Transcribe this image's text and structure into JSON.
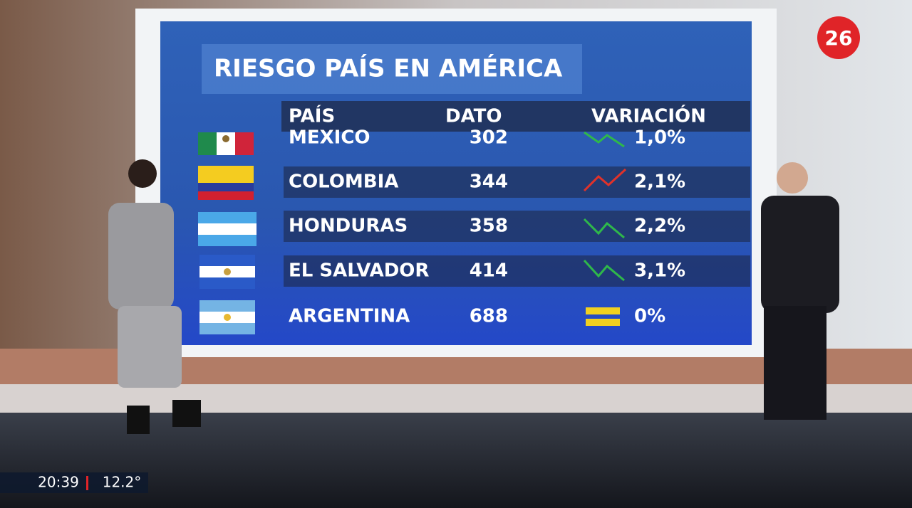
{
  "header": {
    "title": "RIESGO PAÍS EN AMÉRICA",
    "logo": "26"
  },
  "table": {
    "columns": [
      "PAÍS",
      "DATO",
      "VARIACIÓN"
    ],
    "rows": [
      [
        "MEXICO",
        302,
        "1,0%"
      ],
      [
        "COLOMBIA",
        344,
        "2,1%"
      ],
      [
        "HONDURAS",
        358,
        "2,2%"
      ],
      [
        "EL SALVADOR",
        414,
        "3,1%"
      ],
      [
        "ARGENTINA",
        688,
        "0%"
      ]
    ]
  },
  "ticker": {
    "time": "20:39",
    "temperature": "12.2°"
  }
}
